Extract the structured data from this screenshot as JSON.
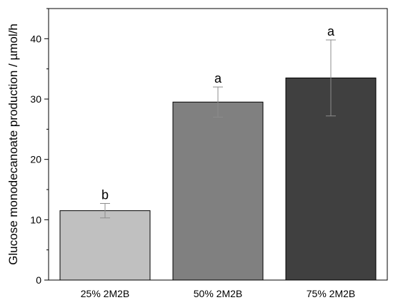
{
  "chart_data": {
    "type": "bar",
    "title": "",
    "xlabel": "",
    "ylabel": "Glucose monodecanoate production / µmol/h",
    "ylim": [
      0,
      45
    ],
    "yticks": [
      0,
      10,
      20,
      30,
      40
    ],
    "y_minor_step": 5,
    "grid": false,
    "legend": "none",
    "categories": [
      "25% 2M2B",
      "50% 2M2B",
      "75% 2M2B"
    ],
    "values": [
      11.5,
      29.5,
      33.5
    ],
    "error_low": [
      10.3,
      27.0,
      27.2
    ],
    "error_high": [
      12.7,
      32.0,
      39.8
    ],
    "significance_labels": [
      "b",
      "a",
      "a"
    ],
    "bar_colors": [
      "#c0c0c0",
      "#808080",
      "#404040"
    ],
    "error_bar_color": "#8c8c8c"
  }
}
